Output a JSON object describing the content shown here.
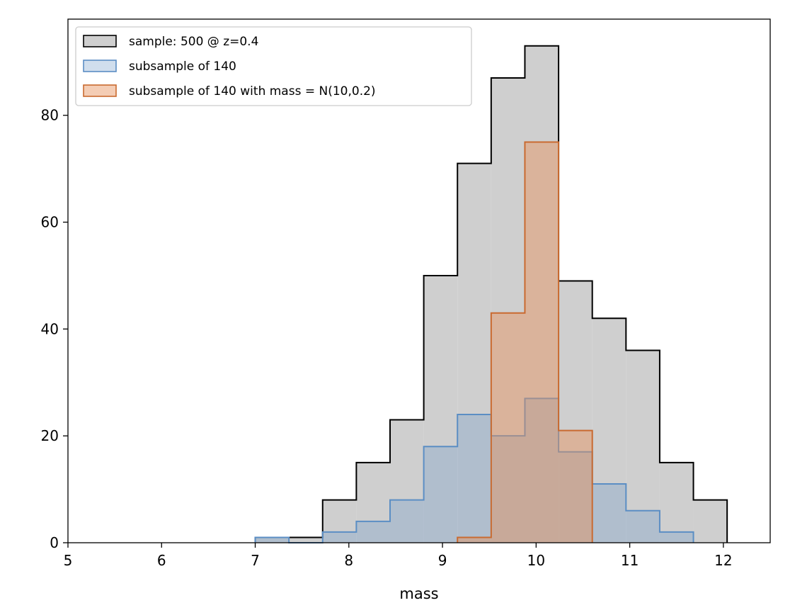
{
  "chart_data": {
    "type": "histogram",
    "title": "",
    "xlabel": "mass",
    "ylabel": "",
    "xlim": [
      5,
      12.5
    ],
    "ylim": [
      0,
      98
    ],
    "xticks": [
      5,
      6,
      7,
      8,
      9,
      10,
      11,
      12
    ],
    "yticks": [
      0,
      20,
      40,
      60,
      80
    ],
    "grid": false,
    "legend_position": "top-left",
    "series": [
      {
        "name": "sample: 500 @ z=0.4",
        "fill": "#cfcfcf",
        "stroke": "#000000",
        "fill_opacity": 1,
        "bin_edges": [
          7.0,
          7.36,
          7.72,
          8.08,
          8.44,
          8.8,
          9.16,
          9.52,
          9.88,
          10.24,
          10.6,
          10.96,
          11.32,
          11.68,
          12.04
        ],
        "counts": [
          1,
          1,
          8,
          15,
          23,
          50,
          71,
          87,
          93,
          49,
          42,
          36,
          15,
          8
        ]
      },
      {
        "name": "subsample of 140",
        "fill": "#6f9bc7",
        "stroke": "#5b8ec4",
        "fill_opacity": 0.33,
        "bin_edges": [
          7.0,
          7.36,
          7.72,
          8.08,
          8.44,
          8.8,
          9.16,
          9.52,
          9.88,
          10.24,
          10.6,
          10.96,
          11.32,
          11.68
        ],
        "counts": [
          1,
          0,
          2,
          4,
          8,
          18,
          24,
          20,
          27,
          17,
          11,
          6,
          2
        ]
      },
      {
        "name": "subsample of 140 with mass = N(10,0.2)",
        "fill": "#e6915c",
        "stroke": "#c96a30",
        "fill_opacity": 0.45,
        "bin_edges": [
          9.16,
          9.52,
          9.88,
          10.24,
          10.6
        ],
        "counts": [
          1,
          43,
          75,
          21
        ]
      }
    ]
  }
}
